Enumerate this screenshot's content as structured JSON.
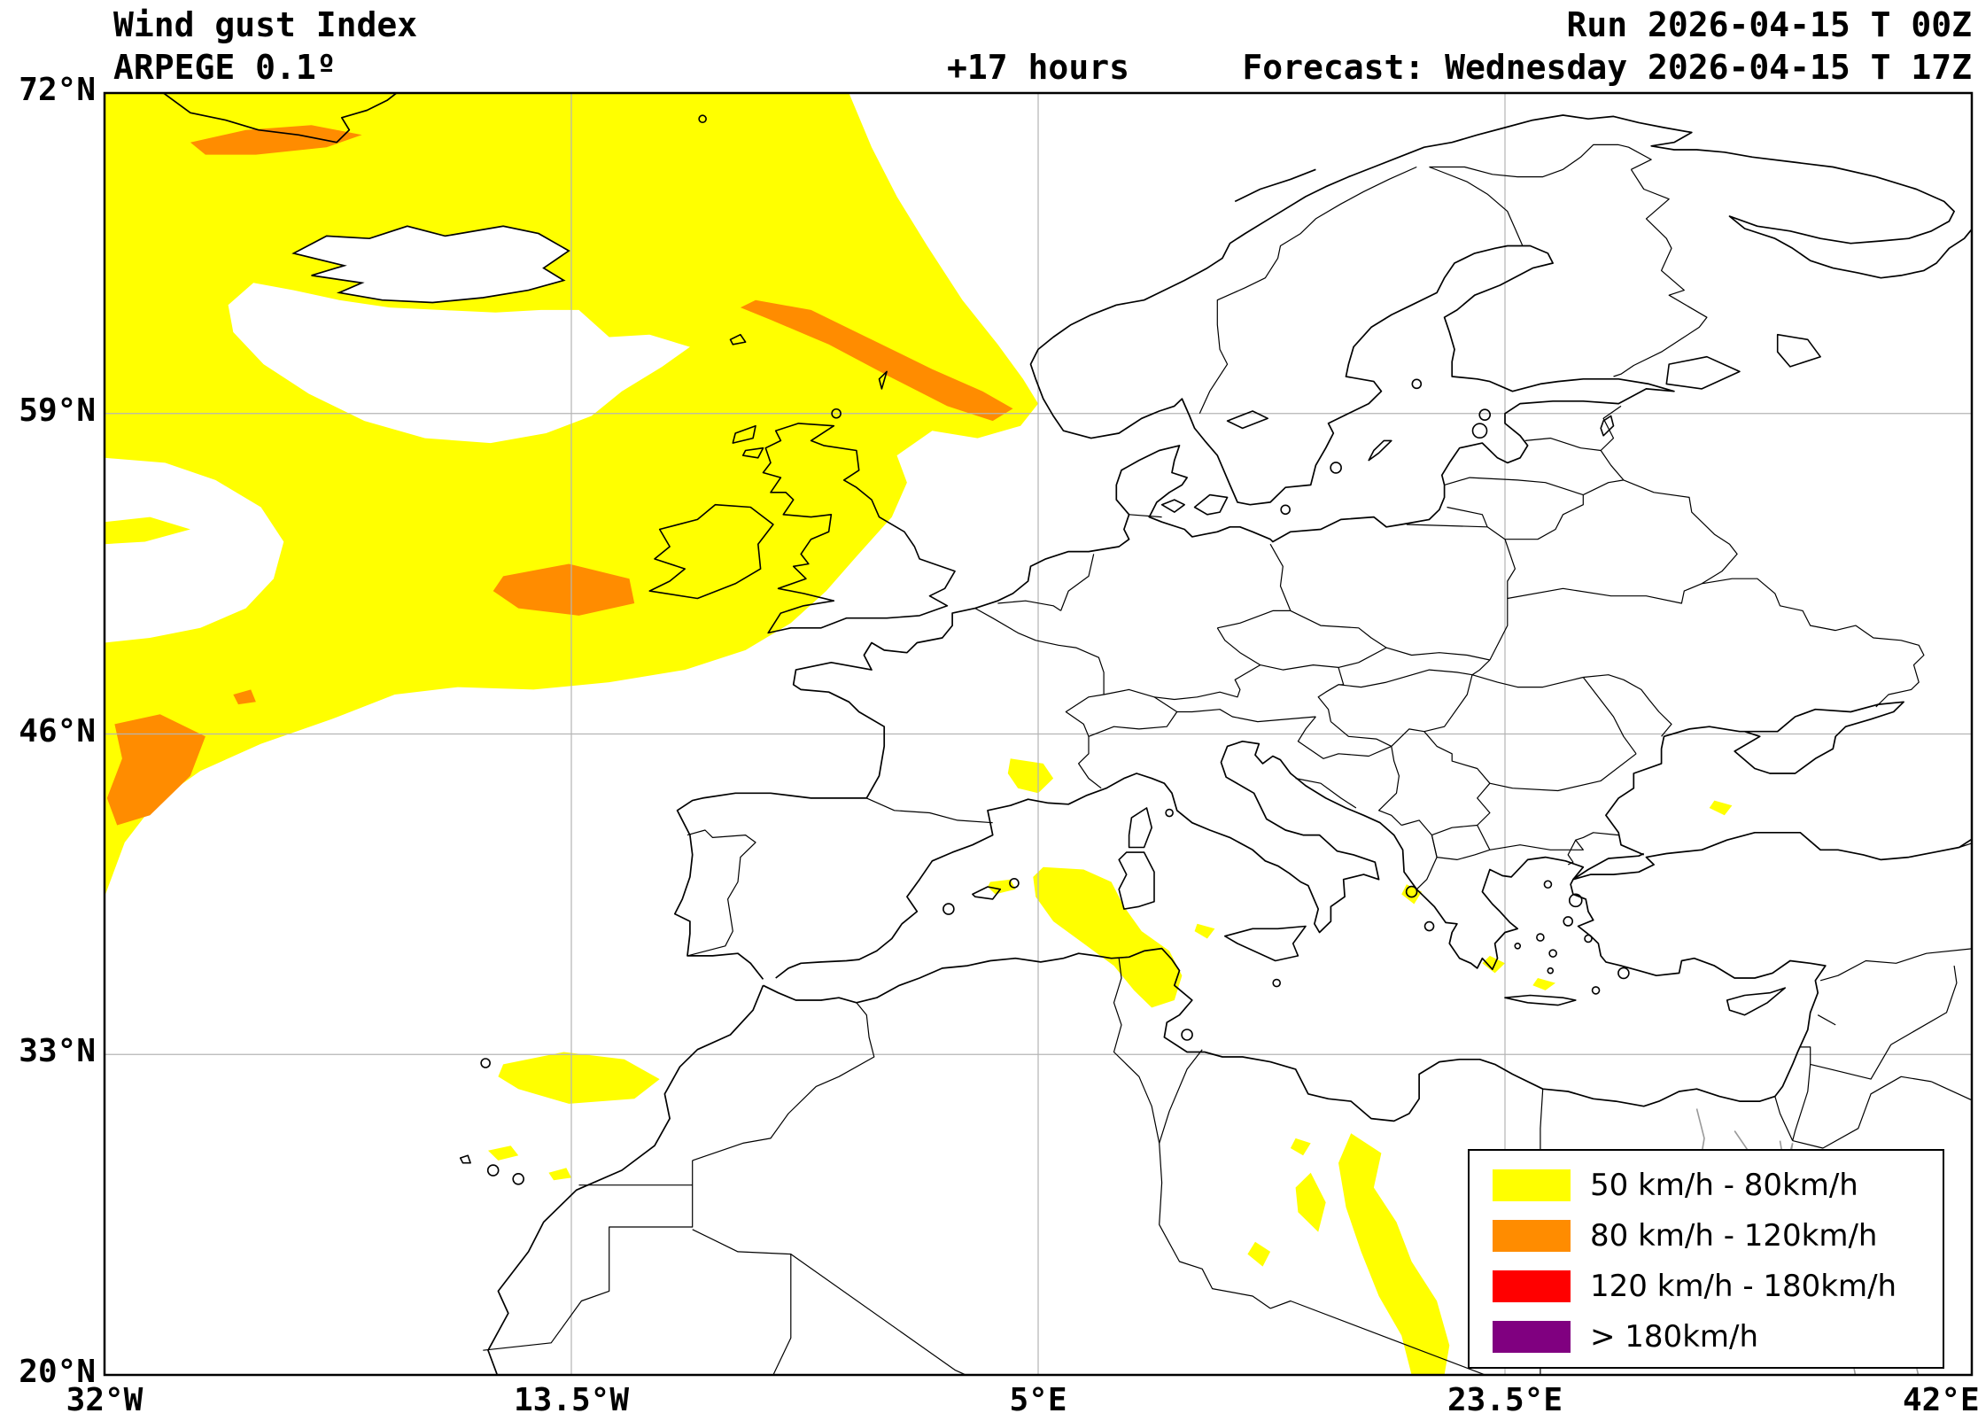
{
  "header": {
    "product": "Wind gust Index",
    "model": "ARPEGE 0.1º",
    "lead": "+17 hours",
    "run": "Run 2026-04-15 T 00Z",
    "forecast": "Forecast: Wednesday 2026-04-15 T 17Z"
  },
  "axes": {
    "x_ticks": [
      "32°W",
      "13.5°W",
      "5°E",
      "23.5°E",
      "42°E"
    ],
    "y_ticks": [
      "72°N",
      "59°N",
      "46°N",
      "33°N",
      "20°N"
    ]
  },
  "legend": {
    "items": [
      {
        "label": "50 km/h - 80km/h",
        "color": "#ffff00"
      },
      {
        "label": "80 km/h - 120km/h",
        "color": "#ff8c00"
      },
      {
        "label": "120 km/h - 180km/h",
        "color": "#ff0000"
      },
      {
        "label": "> 180km/h",
        "color": "#800080"
      }
    ]
  },
  "map_colors": {
    "background": "#ffffff",
    "grid": "#b4b4b4",
    "coast": "#000000",
    "water_detail": "#9a9a9a"
  }
}
